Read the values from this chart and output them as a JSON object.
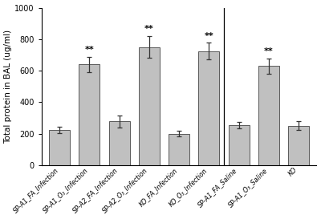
{
  "categories": [
    "SP-A1_FA_Infection",
    "SP-A1_O3_Infection",
    "SP-A2_FA_Infection",
    "SP-A2_O3_Infection",
    "KO_FA_Infection",
    "KO_O3_Infection",
    "SP-A1_FA_Saline",
    "SP-A1_O3_Saline",
    "KO"
  ],
  "tick_labels": [
    "SP-A1_FA_Infection",
    "SP-A1_O₃_Infection",
    "SP-A2_FA_Infection",
    "SP-A2_O₃_Infection",
    "KO_FA_Infection",
    "KO_O₃_Infection",
    "SP-A1_FA_Saline",
    "SP-A1_O₃_Saline",
    "KO"
  ],
  "values": [
    225,
    640,
    278,
    750,
    200,
    725,
    255,
    630,
    252
  ],
  "errors": [
    22,
    48,
    38,
    70,
    18,
    52,
    20,
    48,
    28
  ],
  "significant": [
    false,
    true,
    false,
    true,
    false,
    true,
    false,
    true,
    false
  ],
  "bar_color": "#c0c0c0",
  "bar_edgecolor": "#444444",
  "error_color": "#333333",
  "ylabel": "Total protein in BAL (ug/ml)",
  "ylim": [
    0,
    1000
  ],
  "yticks": [
    0,
    200,
    400,
    600,
    800,
    1000
  ],
  "divider_after_index": 5,
  "tick_label_fontsize": 5.8,
  "ylabel_fontsize": 7.5,
  "sig_fontsize": 8,
  "bar_width": 0.7,
  "fig_width": 4.0,
  "fig_height": 2.73,
  "dpi": 100
}
